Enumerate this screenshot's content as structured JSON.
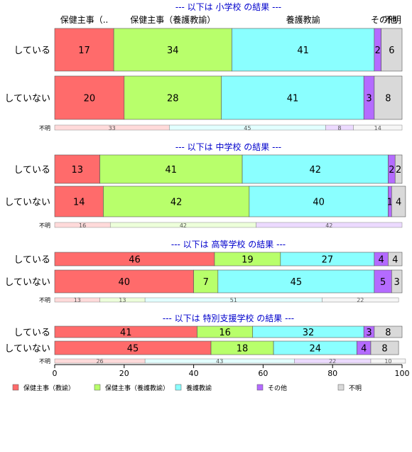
{
  "chart_data": {
    "type": "bar",
    "orientation": "horizontal",
    "stacked": true,
    "xlim": [
      0,
      100
    ],
    "x_ticks": [
      "0",
      "20",
      "40",
      "60",
      "80",
      "100"
    ],
    "grid": false,
    "legend_position": "bottom",
    "column_labels": [
      "保健主事（..",
      "保健主事（養護教諭）",
      "養護教諭",
      "その他",
      "不明"
    ],
    "series": [
      {
        "name": "保健主事（教諭）",
        "color": "#ff6b6b"
      },
      {
        "name": "保健主事（養護教諭）",
        "color": "#b8ff6b"
      },
      {
        "name": "養護教諭",
        "color": "#8affff"
      },
      {
        "name": "その他",
        "color": "#b46bff"
      },
      {
        "name": "不明",
        "color": "#d9d9d9"
      }
    ],
    "panels": [
      {
        "title": "--- 以下は 小学校 の結果 ---",
        "rows": [
          {
            "label": "している",
            "values": [
              17,
              34,
              41,
              2,
              6
            ]
          },
          {
            "label": "していない",
            "values": [
              20,
              28,
              41,
              3,
              8
            ]
          }
        ],
        "unknown": {
          "label": "不明",
          "values": [
            33,
            0,
            45,
            8,
            14
          ]
        }
      },
      {
        "title": "--- 以下は 中学校 の結果 ---",
        "rows": [
          {
            "label": "している",
            "values": [
              13,
              41,
              42,
              2,
              2
            ]
          },
          {
            "label": "していない",
            "values": [
              14,
              42,
              40,
              1,
              4
            ]
          }
        ],
        "unknown": {
          "label": "不明",
          "values": [
            16,
            42,
            0,
            42,
            0
          ]
        }
      },
      {
        "title": "--- 以下は 高等学校 の結果 ---",
        "rows": [
          {
            "label": "している",
            "values": [
              46,
              19,
              27,
              4,
              4
            ]
          },
          {
            "label": "していない",
            "values": [
              40,
              7,
              45,
              5,
              3
            ]
          }
        ],
        "unknown": {
          "label": "不明",
          "values": [
            13,
            13,
            51,
            0,
            22
          ]
        }
      },
      {
        "title": "--- 以下は 特別支援学校 の結果 ---",
        "rows": [
          {
            "label": "している",
            "values": [
              41,
              16,
              32,
              3,
              8
            ]
          },
          {
            "label": "していない",
            "values": [
              45,
              18,
              24,
              4,
              8
            ]
          }
        ],
        "unknown": {
          "label": "不明",
          "values": [
            26,
            0,
            43,
            22,
            10
          ]
        }
      }
    ]
  }
}
